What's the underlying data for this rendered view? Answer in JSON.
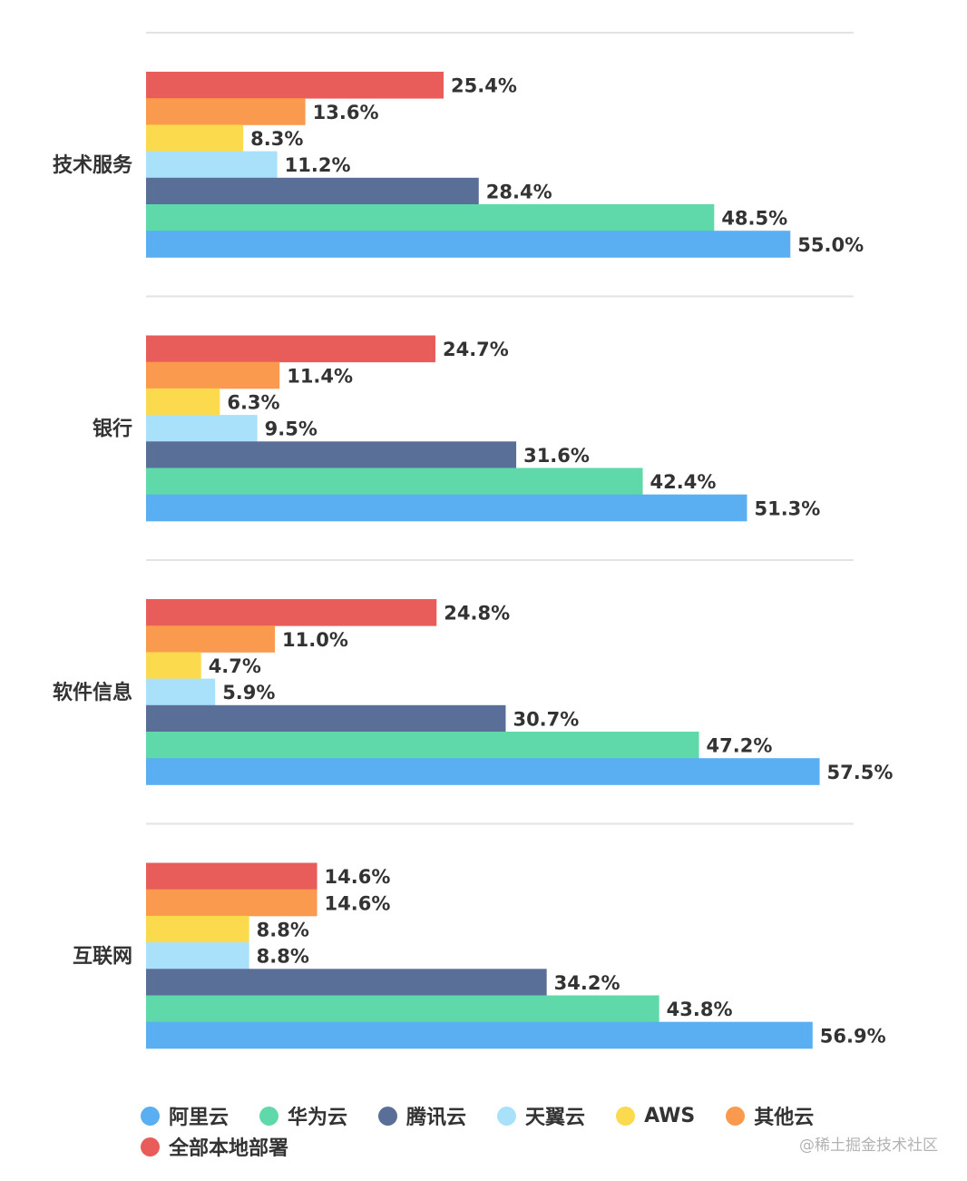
{
  "chart_data": {
    "type": "bar",
    "orientation": "horizontal",
    "categories": [
      "技术服务",
      "银行",
      "软件信息",
      "互联网"
    ],
    "series": [
      {
        "name": "全部本地部署",
        "color": "#e85c5a",
        "values": [
          25.4,
          24.7,
          24.8,
          14.6
        ],
        "labels": [
          "25.4%",
          "24.7%",
          "24.8%",
          "14.6%"
        ]
      },
      {
        "name": "其他云",
        "color": "#fa9a4e",
        "values": [
          13.6,
          11.4,
          11.0,
          14.6
        ],
        "labels": [
          "13.6%",
          "11.4%",
          "11.0%",
          "14.6%"
        ]
      },
      {
        "name": "AWS",
        "color": "#fbda4e",
        "values": [
          8.3,
          6.3,
          4.7,
          8.8
        ],
        "labels": [
          "8.3%",
          "6.3%",
          "4.7%",
          "8.8%"
        ]
      },
      {
        "name": "天翼云",
        "color": "#a9e1fb",
        "values": [
          11.2,
          9.5,
          5.9,
          8.8
        ],
        "labels": [
          "11.2%",
          "9.5%",
          "5.9%",
          "8.8%"
        ]
      },
      {
        "name": "腾讯云",
        "color": "#5a6f97",
        "values": [
          28.4,
          31.6,
          30.7,
          34.2
        ],
        "labels": [
          "28.4%",
          "31.6%",
          "30.7%",
          "34.2%"
        ]
      },
      {
        "name": "华为云",
        "color": "#5fd9a9",
        "values": [
          48.5,
          42.4,
          47.2,
          43.8
        ],
        "labels": [
          "48.5%",
          "42.4%",
          "47.2%",
          "43.8%"
        ]
      },
      {
        "name": "阿里云",
        "color": "#59aff1",
        "values": [
          55.0,
          51.3,
          57.5,
          56.9
        ],
        "labels": [
          "55.0%",
          "51.3%",
          "57.5%",
          "56.9%"
        ]
      }
    ],
    "xlim": [
      0,
      60.4
    ],
    "legend": {
      "position": "bottom",
      "rows": [
        [
          {
            "name": "阿里云",
            "color": "#59aff1"
          },
          {
            "name": "华为云",
            "color": "#5fd9a9"
          },
          {
            "name": "腾讯云",
            "color": "#5a6f97"
          },
          {
            "name": "天翼云",
            "color": "#a9e1fb"
          },
          {
            "name": "AWS",
            "color": "#fbda4e"
          },
          {
            "name": "其他云",
            "color": "#fa9a4e"
          }
        ],
        [
          {
            "name": "全部本地部署",
            "color": "#e85c5a"
          }
        ]
      ]
    }
  },
  "watermark": "@稀土掘金技术社区"
}
